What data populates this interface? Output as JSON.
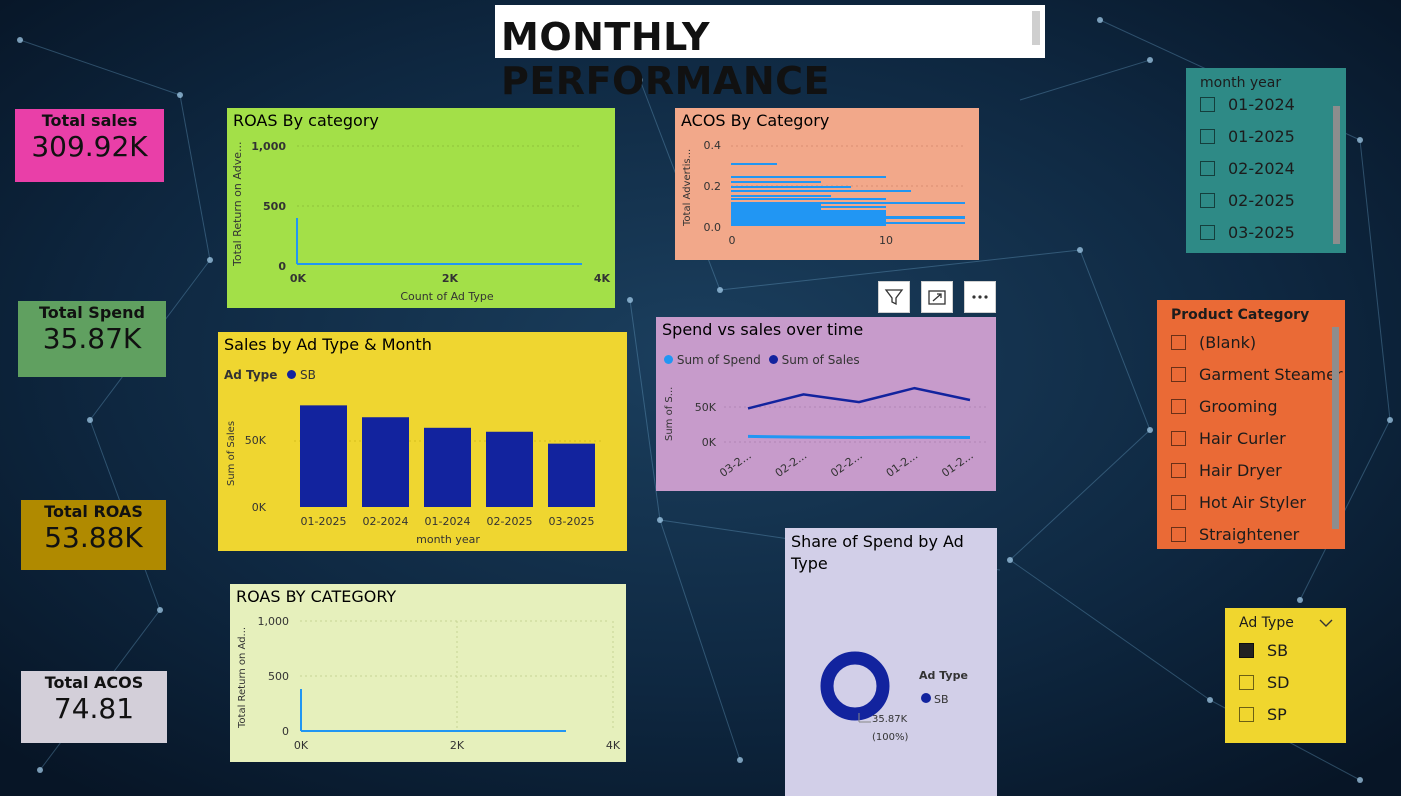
{
  "header": {
    "title": "MONTHLY PERFORMANCE"
  },
  "kpis": {
    "total_sales": {
      "label": "Total sales",
      "value": "309.92K",
      "color": "#e93fa8"
    },
    "total_spend": {
      "label": "Total Spend",
      "value": "35.87K",
      "color": "#60a060"
    },
    "total_roas": {
      "label": "Total ROAS",
      "value": "53.88K",
      "color": "#b08a00"
    },
    "total_acos": {
      "label": "Total ACOS",
      "value": "74.81",
      "color": "#d3cfd9"
    }
  },
  "roas_top": {
    "title": "ROAS By category",
    "ylabel": "Total Return on Adve...",
    "xlabel": "Count of Ad Type",
    "yticks": [
      "1,000",
      "500",
      "0"
    ],
    "xticks": [
      "0K",
      "2K",
      "4K"
    ],
    "bg": "#a3e048"
  },
  "acos": {
    "title": "ACOS By Category",
    "ylabel": "Total Advertis...",
    "yticks": [
      "0.4",
      "0.2",
      "0.0"
    ],
    "xticks": [
      "0",
      "10"
    ],
    "bg": "#f2a88a"
  },
  "sales_by_month": {
    "title": "Sales by Ad Type & Month",
    "legend_title": "Ad Type",
    "legend_item": "SB",
    "ylabel": "Sum of Sales",
    "xlabel": "month year",
    "yticks": [
      "50K",
      "0K"
    ],
    "bg": "#efd630"
  },
  "spend_vs_sales": {
    "title": "Spend vs sales over time",
    "legend": [
      "Sum of Spend",
      "Sum of Sales"
    ],
    "ylabel": "Sum of S...",
    "yticks": [
      "50K",
      "0K"
    ],
    "xticks": [
      "03-2...",
      "02-2...",
      "02-2...",
      "01-2...",
      "01-2..."
    ],
    "bg": "#c79bcb"
  },
  "roas_bottom": {
    "title": "ROAS BY CATEGORY",
    "ylabel": "Total Return on Ad...",
    "yticks": [
      "1,000",
      "500",
      "0"
    ],
    "xticks": [
      "0K",
      "2K",
      "4K"
    ],
    "bg": "#e6f0bc"
  },
  "share_spend": {
    "title": "Share of Spend by Ad Type",
    "legend_title": "Ad Type",
    "legend_item": "SB",
    "label_value": "35.87K",
    "label_pct": "(100%)",
    "bg": "#d2cfe8"
  },
  "slicer_month": {
    "title": "month year",
    "items": [
      "01-2024",
      "01-2025",
      "02-2024",
      "02-2025",
      "03-2025"
    ],
    "bg": "#2e8a86"
  },
  "slicer_category": {
    "title": "Product Category",
    "items": [
      "(Blank)",
      "Garment Steamer",
      "Grooming",
      "Hair Curler",
      "Hair Dryer",
      "Hot Air Styler",
      "Straightener"
    ],
    "bg": "#ea6a36"
  },
  "slicer_adtype": {
    "title": "Ad Type",
    "items": [
      "SB",
      "SD",
      "SP"
    ],
    "selected": "SB",
    "bg": "#f0d62e"
  },
  "toolbar": {
    "icons": [
      "filter-icon",
      "focus-mode-icon",
      "more-options-icon"
    ]
  },
  "chart_data": [
    {
      "type": "bar",
      "title": "Sales by Ad Type & Month",
      "xlabel": "month year",
      "ylabel": "Sum of Sales",
      "categories": [
        "01-2025",
        "02-2024",
        "01-2024",
        "02-2025",
        "03-2025"
      ],
      "series": [
        {
          "name": "SB",
          "values": [
            77000,
            68000,
            60000,
            57000,
            48000
          ]
        }
      ],
      "ylim": [
        0,
        100000
      ],
      "legend": "top-left"
    },
    {
      "type": "line",
      "title": "Spend vs sales over time",
      "ylabel": "Sum of S...",
      "categories": [
        "03-2...",
        "02-2...",
        "02-2...",
        "01-2...",
        "01-2..."
      ],
      "series": [
        {
          "name": "Sum of Spend",
          "values": [
            8000,
            7000,
            6500,
            6800,
            6500
          ],
          "color": "#2196f3"
        },
        {
          "name": "Sum of Sales",
          "values": [
            48000,
            68000,
            57000,
            77000,
            60000
          ],
          "color": "#12239e"
        }
      ],
      "ylim": [
        -30000,
        80000
      ],
      "legend": "top-left"
    },
    {
      "type": "pie",
      "title": "Share of Spend by Ad Type",
      "slices": [
        {
          "label": "SB",
          "value": 35870,
          "percent": 100
        }
      ]
    }
  ]
}
